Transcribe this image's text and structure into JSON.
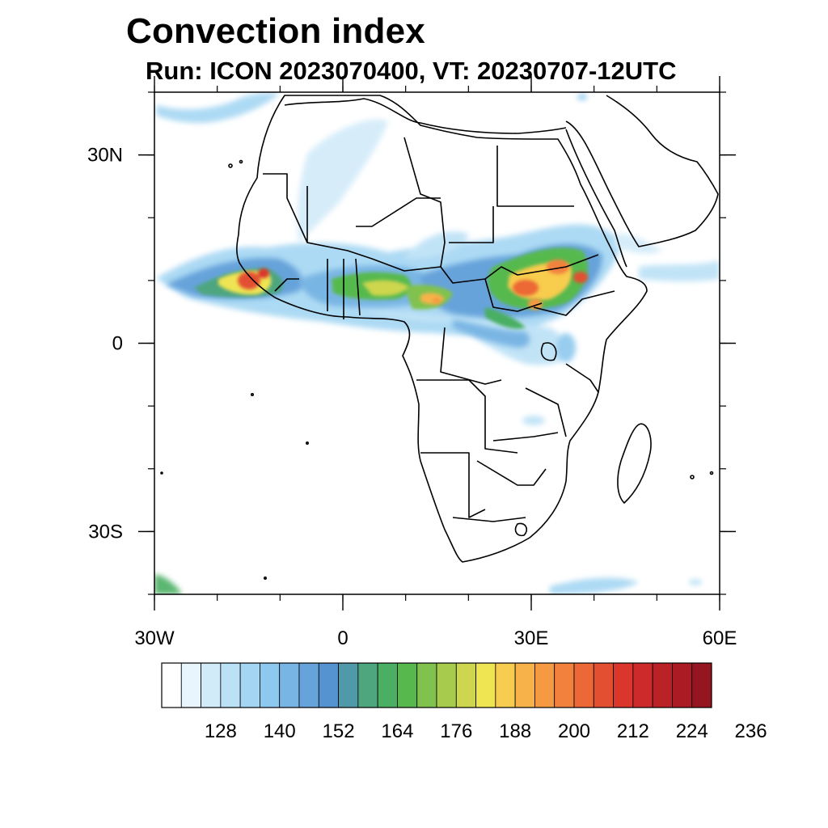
{
  "header": {
    "title": "Convection index",
    "subtitle": "Run: ICON 2023070400,  VT: 20230707-12UTC"
  },
  "map": {
    "lon_range": [
      -30,
      60
    ],
    "lat_range": [
      -40,
      40
    ],
    "x_ticks": [
      {
        "value": -30,
        "label": "30W"
      },
      {
        "value": 0,
        "label": "0"
      },
      {
        "value": 30,
        "label": "30E"
      },
      {
        "value": 60,
        "label": "60E"
      }
    ],
    "y_ticks": [
      {
        "value": 30,
        "label": "30N"
      },
      {
        "value": 0,
        "label": "0"
      },
      {
        "value": -30,
        "label": "30S"
      }
    ],
    "minor_tick_step_deg": 10,
    "shaded_field": "Convection index"
  },
  "colorbar": {
    "labels": [
      "128",
      "140",
      "152",
      "164",
      "176",
      "188",
      "200",
      "212",
      "224",
      "236"
    ],
    "colors": [
      "#ffffff",
      "#e8f5fc",
      "#d2ebf9",
      "#bbe1f6",
      "#a4d6f3",
      "#8dc8ee",
      "#79b5e4",
      "#66a3da",
      "#5493cf",
      "#4f99a8",
      "#4ea67f",
      "#4aaf62",
      "#57b94d",
      "#80c24d",
      "#a7cc4d",
      "#cdd64e",
      "#efe452",
      "#f8cc4e",
      "#f7b349",
      "#f59a43",
      "#f1813d",
      "#ec6836",
      "#e34f31",
      "#da362c",
      "#cc2a2b",
      "#bb2228",
      "#aa1b24",
      "#951620"
    ]
  }
}
